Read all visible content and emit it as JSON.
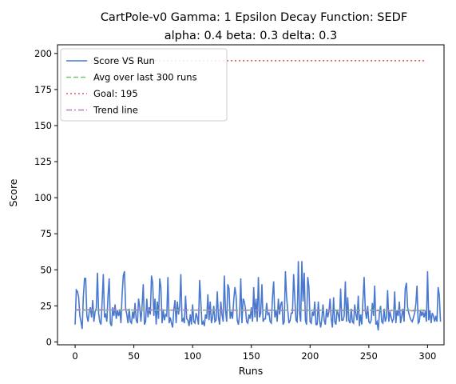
{
  "chart_data": {
    "type": "line",
    "title": "CartPole-v0 Gamma: 1 Epsilon Decay Function: SEDF",
    "subtitle": "alpha: 0.4  beta: 0.3  delta: 0.3",
    "xlabel": "Runs",
    "ylabel": "Score",
    "xlim": [
      -15,
      314
    ],
    "ylim": [
      -2,
      206
    ],
    "xticks": [
      0,
      50,
      100,
      150,
      200,
      250,
      300
    ],
    "yticks": [
      0,
      25,
      50,
      75,
      100,
      125,
      150,
      175,
      200
    ],
    "grid": false,
    "legend_position": "top-left",
    "series": [
      {
        "name": "Score VS Run",
        "style": "solid",
        "color": "#4878cf",
        "x_start": 0,
        "values": [
          12,
          36,
          35,
          31,
          18,
          14,
          9,
          31,
          44,
          44,
          18,
          14,
          21,
          24,
          17,
          29,
          14,
          21,
          23,
          48,
          20,
          14,
          12,
          28,
          47,
          17,
          19,
          14,
          32,
          44,
          13,
          11,
          24,
          18,
          26,
          16,
          22,
          18,
          22,
          13,
          33,
          46,
          49,
          23,
          19,
          13,
          23,
          14,
          13,
          21,
          16,
          27,
          15,
          13,
          30,
          24,
          14,
          25,
          40,
          12,
          14,
          30,
          17,
          24,
          19,
          46,
          41,
          18,
          30,
          12,
          28,
          16,
          44,
          38,
          13,
          22,
          15,
          19,
          18,
          45,
          13,
          17,
          13,
          10,
          22,
          29,
          13,
          28,
          19,
          25,
          47,
          14,
          16,
          13,
          32,
          16,
          15,
          11,
          19,
          12,
          26,
          14,
          13,
          20,
          17,
          12,
          43,
          28,
          12,
          14,
          11,
          19,
          16,
          33,
          15,
          28,
          13,
          17,
          25,
          14,
          15,
          35,
          17,
          12,
          28,
          19,
          14,
          46,
          22,
          14,
          40,
          37,
          16,
          21,
          16,
          29,
          38,
          32,
          15,
          12,
          19,
          44,
          13,
          30,
          28,
          23,
          14,
          13,
          19,
          16,
          24,
          14,
          38,
          17,
          30,
          14,
          45,
          17,
          20,
          40,
          14,
          16,
          16,
          27,
          19,
          20,
          14,
          13,
          31,
          42,
          17,
          22,
          14,
          30,
          19,
          26,
          28,
          12,
          14,
          49,
          31,
          22,
          13,
          15,
          20,
          20,
          47,
          30,
          15,
          14,
          56,
          20,
          14,
          56,
          28,
          48,
          15,
          12,
          45,
          38,
          14,
          13,
          21,
          18,
          28,
          12,
          12,
          28,
          15,
          10,
          16,
          26,
          15,
          12,
          23,
          17,
          21,
          30,
          16,
          10,
          31,
          14,
          12,
          22,
          19,
          14,
          37,
          15,
          15,
          18,
          42,
          14,
          31,
          15,
          13,
          23,
          14,
          13,
          26,
          19,
          15,
          32,
          11,
          19,
          12,
          29,
          45,
          22,
          16,
          25,
          14,
          13,
          15,
          27,
          18,
          39,
          12,
          14,
          8,
          20,
          25,
          14,
          13,
          23,
          14,
          17,
          36,
          14,
          21,
          17,
          14,
          16,
          35,
          13,
          22,
          18,
          28,
          13,
          18,
          23,
          14,
          37,
          41,
          24,
          20,
          17,
          15,
          14,
          17,
          20,
          26,
          39,
          13,
          14,
          22,
          18,
          21,
          17,
          21,
          14,
          49,
          15,
          22,
          13,
          20,
          18,
          14,
          18,
          14,
          38,
          32,
          14
        ]
      },
      {
        "name": "Avg over last 300 runs",
        "style": "dashed",
        "color": "#6acc65",
        "x": [
          0,
          299
        ],
        "values": [
          22,
          22
        ]
      },
      {
        "name": "Goal: 195",
        "style": "dotted",
        "color": "#d65f5f",
        "x": [
          0,
          299
        ],
        "values": [
          195,
          195
        ]
      },
      {
        "name": "Trend line",
        "style": "dashdot",
        "color": "#b47cc7",
        "x": [
          0,
          299
        ],
        "values": [
          22.3,
          21.6
        ]
      }
    ]
  }
}
